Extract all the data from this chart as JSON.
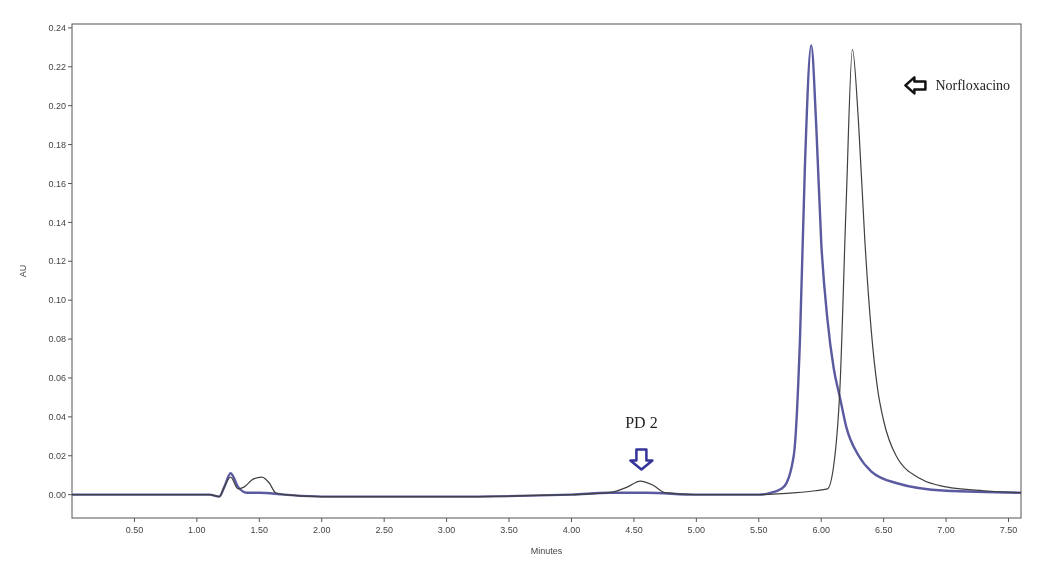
{
  "chart_data": {
    "type": "line",
    "xlabel": "Minutes",
    "ylabel": "AU",
    "xlim": [
      0,
      7.6
    ],
    "ylim": [
      -0.012,
      0.242
    ],
    "xticks": [
      {
        "value": 0.5,
        "label": "0.50"
      },
      {
        "value": 1,
        "label": "1.00"
      },
      {
        "value": 1.5,
        "label": "1.50"
      },
      {
        "value": 2,
        "label": "2.00"
      },
      {
        "value": 2.5,
        "label": "2.50"
      },
      {
        "value": 3,
        "label": "3.00"
      },
      {
        "value": 3.5,
        "label": "3.50"
      },
      {
        "value": 4,
        "label": "4.00"
      },
      {
        "value": 4.5,
        "label": "4.50"
      },
      {
        "value": 5,
        "label": "5.00"
      },
      {
        "value": 5.5,
        "label": "5.50"
      },
      {
        "value": 6,
        "label": "6.00"
      },
      {
        "value": 6.5,
        "label": "6.50"
      },
      {
        "value": 7,
        "label": "7.00"
      },
      {
        "value": 7.5,
        "label": "7.50"
      }
    ],
    "yticks": [
      {
        "value": 0,
        "label": "0.00"
      },
      {
        "value": 0.02,
        "label": "0.02"
      },
      {
        "value": 0.04,
        "label": "0.04"
      },
      {
        "value": 0.06,
        "label": "0.06"
      },
      {
        "value": 0.08,
        "label": "0.08"
      },
      {
        "value": 0.1,
        "label": "0.10"
      },
      {
        "value": 0.12,
        "label": "0.12"
      },
      {
        "value": 0.14,
        "label": "0.14"
      },
      {
        "value": 0.16,
        "label": "0.16"
      },
      {
        "value": 0.18,
        "label": "0.18"
      },
      {
        "value": 0.2,
        "label": "0.20"
      },
      {
        "value": 0.22,
        "label": "0.22"
      },
      {
        "value": 0.24,
        "label": "0.24"
      }
    ],
    "grid": false,
    "marker": "none",
    "line_style": "solid",
    "series": [
      {
        "color": "#5a5aa0",
        "x": [
          0,
          1.1,
          1.18,
          1.22,
          1.27,
          1.33,
          1.4,
          1.5,
          1.7,
          2,
          3,
          4,
          4.3,
          4.6,
          5,
          5.5,
          5.6,
          5.7,
          5.78,
          5.83,
          5.87,
          5.92,
          5.96,
          6,
          6.05,
          6.1,
          6.15,
          6.2,
          6.3,
          6.4,
          6.6,
          7,
          7.6
        ],
        "values": [
          0,
          0,
          -0.001,
          0.004,
          0.011,
          0.004,
          0.001,
          0.001,
          0,
          -0.001,
          -0.001,
          0,
          0.001,
          0.001,
          0,
          0,
          0.001,
          0.004,
          0.02,
          0.08,
          0.17,
          0.231,
          0.19,
          0.13,
          0.09,
          0.065,
          0.05,
          0.035,
          0.02,
          0.012,
          0.006,
          0.002,
          0.001
        ]
      },
      {
        "color": "#404040",
        "x": [
          0,
          1.1,
          1.18,
          1.22,
          1.27,
          1.33,
          1.38,
          1.45,
          1.52,
          1.58,
          1.63,
          1.7,
          2,
          3,
          4,
          4.3,
          4.45,
          4.55,
          4.65,
          4.75,
          5,
          5.5,
          5.8,
          5.95,
          6.05,
          6.1,
          6.15,
          6.2,
          6.25,
          6.3,
          6.35,
          6.4,
          6.45,
          6.5,
          6.6,
          6.8,
          7,
          7.3,
          7.6
        ],
        "values": [
          0,
          0,
          -0.001,
          0.004,
          0.009,
          0.003,
          0.004,
          0.008,
          0.009,
          0.006,
          0.001,
          0,
          -0.001,
          -0.001,
          0,
          0.001,
          0.004,
          0.007,
          0.005,
          0.001,
          0,
          0,
          0.001,
          0.002,
          0.003,
          0.015,
          0.055,
          0.15,
          0.229,
          0.19,
          0.13,
          0.085,
          0.055,
          0.038,
          0.02,
          0.008,
          0.004,
          0.002,
          0.001
        ]
      }
    ],
    "annotations": [
      "PD 2",
      "Norfloxacino"
    ]
  }
}
